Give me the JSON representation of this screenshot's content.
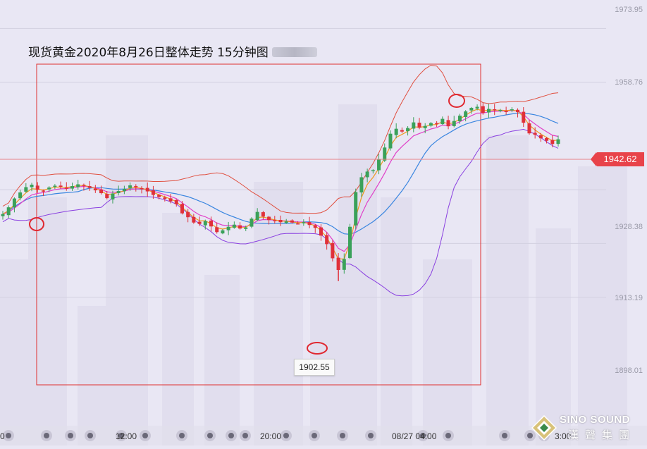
{
  "title": "现货黄金2020年8月26日整体走势 15分钟图",
  "current_price": "1942.62",
  "low_label": "1902.55",
  "y_labels": [
    "1973.95",
    "1958.76",
    "1928.38",
    "1913.19",
    "1898.01"
  ],
  "x_labels": [
    "0",
    "12:00",
    "20:00",
    "08/27 04:00",
    "3:00"
  ],
  "logo": {
    "line1": "SINO SOUND",
    "line2": "漢聲集團"
  },
  "colors": {
    "up": "#3aa15a",
    "down": "#e0303a",
    "ma_fast": "#f09a20",
    "ma_mid": "#e040c8",
    "ma_slow": "#3a86e0",
    "boll_upper": "#e05040",
    "boll_lower": "#8a40e0",
    "highlight": "#e02830"
  },
  "chart_data": {
    "type": "candlestick",
    "title": "现货黄金2020年8月26日整体走势 15分钟图",
    "interval": "15 minutes",
    "y_ticks": [
      1973.95,
      1958.76,
      1928.38,
      1913.19,
      1898.01
    ],
    "ylim": [
      1892,
      1975
    ],
    "x_ticks": [
      "0",
      "12:00",
      "20:00",
      "08/27 04:00",
      "3:00"
    ],
    "current_price": 1942.62,
    "marked_low": 1902.55,
    "key_points": [
      {
        "desc": "early swing high",
        "price": 1930.0
      },
      {
        "desc": "session low",
        "price": 1902.55
      },
      {
        "desc": "session high",
        "price": 1952.9
      }
    ],
    "close_path": [
      1921.5,
      1923.4,
      1925.9,
      1927.6,
      1929.1,
      1929.8,
      1928.4,
      1928.1,
      1929.0,
      1929.5,
      1929.2,
      1928.9,
      1929.4,
      1929.9,
      1929.6,
      1928.9,
      1928.2,
      1927.4,
      1926.0,
      1927.3,
      1928.0,
      1928.6,
      1929.6,
      1929.1,
      1928.6,
      1927.9,
      1926.9,
      1926.3,
      1925.8,
      1925.1,
      1924.3,
      1921.7,
      1920.6,
      1919.1,
      1918.7,
      1919.5,
      1918.0,
      1916.4,
      1916.9,
      1917.9,
      1918.5,
      1917.4,
      1917.7,
      1920.2,
      1922.1,
      1920.8,
      1919.8,
      1919.5,
      1919.2,
      1919.4,
      1919.1,
      1918.8,
      1919.2,
      1918.4,
      1917.6,
      1915.4,
      1913.0,
      1909.0,
      1905.7,
      1908.8,
      1917.9,
      1927.7,
      1931.9,
      1933.5,
      1933.9,
      1936.9,
      1940.3,
      1944.2,
      1945.6,
      1944.8,
      1945.8,
      1947.4,
      1945.9,
      1946.4,
      1947.2,
      1946.9,
      1948.4,
      1946.3,
      1947.8,
      1949.3,
      1950.5,
      1951.5,
      1951.8,
      1950.1,
      1951.2,
      1950.8,
      1950.9,
      1950.6,
      1951.1,
      1950.3,
      1947.3,
      1944.3,
      1943.9,
      1942.9,
      1942.2,
      1941.3,
      1942.62
    ]
  }
}
